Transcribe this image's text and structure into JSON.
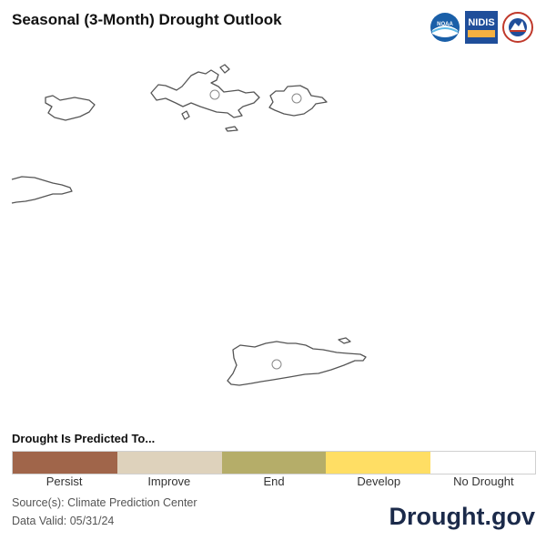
{
  "header": {
    "title": "Seasonal (3-Month) Drought Outlook"
  },
  "logos": {
    "noaa": {
      "icon": "noaa-logo-icon",
      "text": "NOAA"
    },
    "nidis": {
      "icon": "nidis-logo-icon",
      "text": "NIDIS"
    },
    "nws": {
      "icon": "nws-logo-icon"
    }
  },
  "legend": {
    "title": "Drought Is Predicted To...",
    "items": [
      {
        "label": "Persist",
        "color": "#a0654a"
      },
      {
        "label": "Improve",
        "color": "#ded2bc"
      },
      {
        "label": "End",
        "color": "#b5ad69"
      },
      {
        "label": "Develop",
        "color": "#ffde64"
      },
      {
        "label": "No Drought",
        "color": "#ffffff"
      }
    ]
  },
  "footer": {
    "source": "Source(s): Climate Prediction Center",
    "valid": "Data Valid: 05/31/24",
    "brand": "Drought.gov"
  }
}
